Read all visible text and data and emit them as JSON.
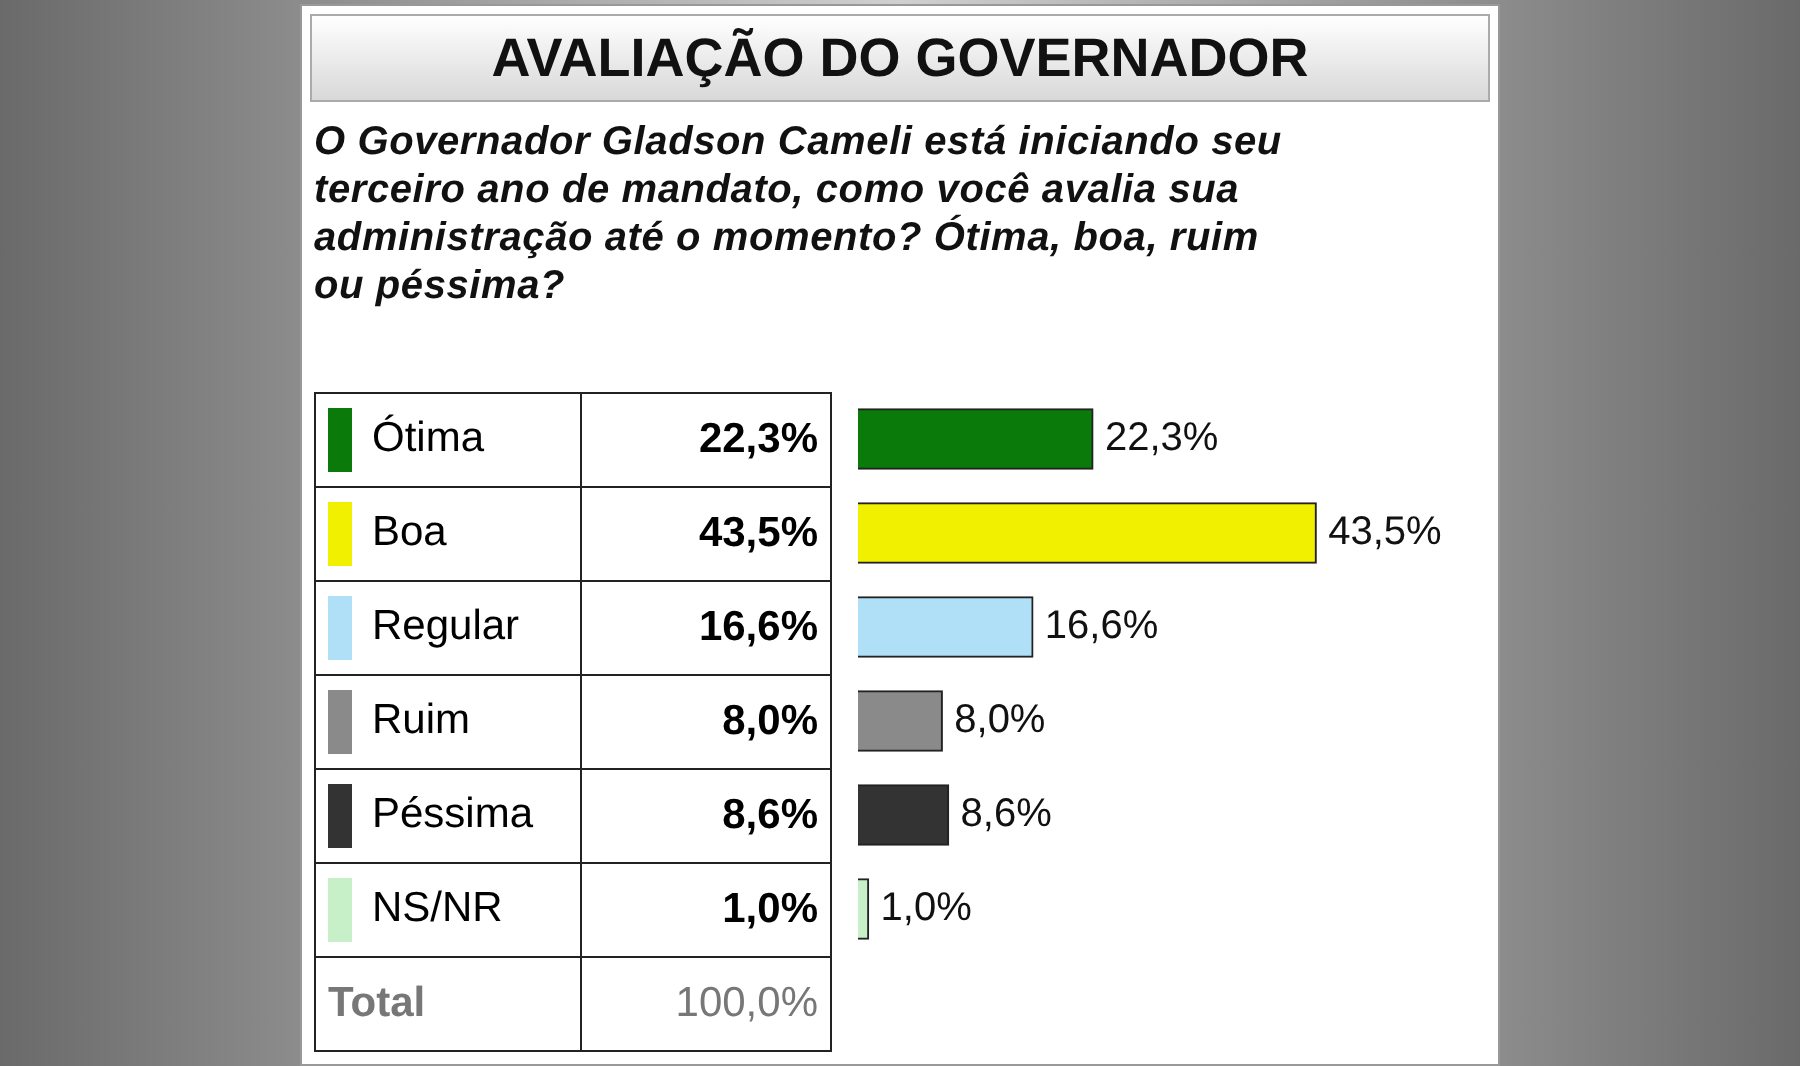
{
  "chart_data": {
    "type": "bar",
    "orientation": "horizontal",
    "title": "AVALIAÇÃO DO GOVERNADOR",
    "subtitle": "O Governador Gladson Cameli está iniciando seu terceiro ano de mandato, como você avalia sua administração até o momento? Ótima, boa, ruim ou péssima?",
    "categories": [
      "Ótima",
      "Boa",
      "Regular",
      "Ruim",
      "Péssima",
      "NS/NR"
    ],
    "values": [
      22.3,
      43.5,
      16.6,
      8.0,
      8.6,
      1.0
    ],
    "colors": [
      "#0a7a0a",
      "#f0f000",
      "#b0e0f8",
      "#8a8a8a",
      "#333333",
      "#c8f0c8"
    ],
    "value_labels": [
      "22,3%",
      "43,5%",
      "16,6%",
      "8,0%",
      "8,6%",
      "1,0%"
    ],
    "legend": false,
    "annotations": [
      "Total",
      "100,0%"
    ]
  }
}
